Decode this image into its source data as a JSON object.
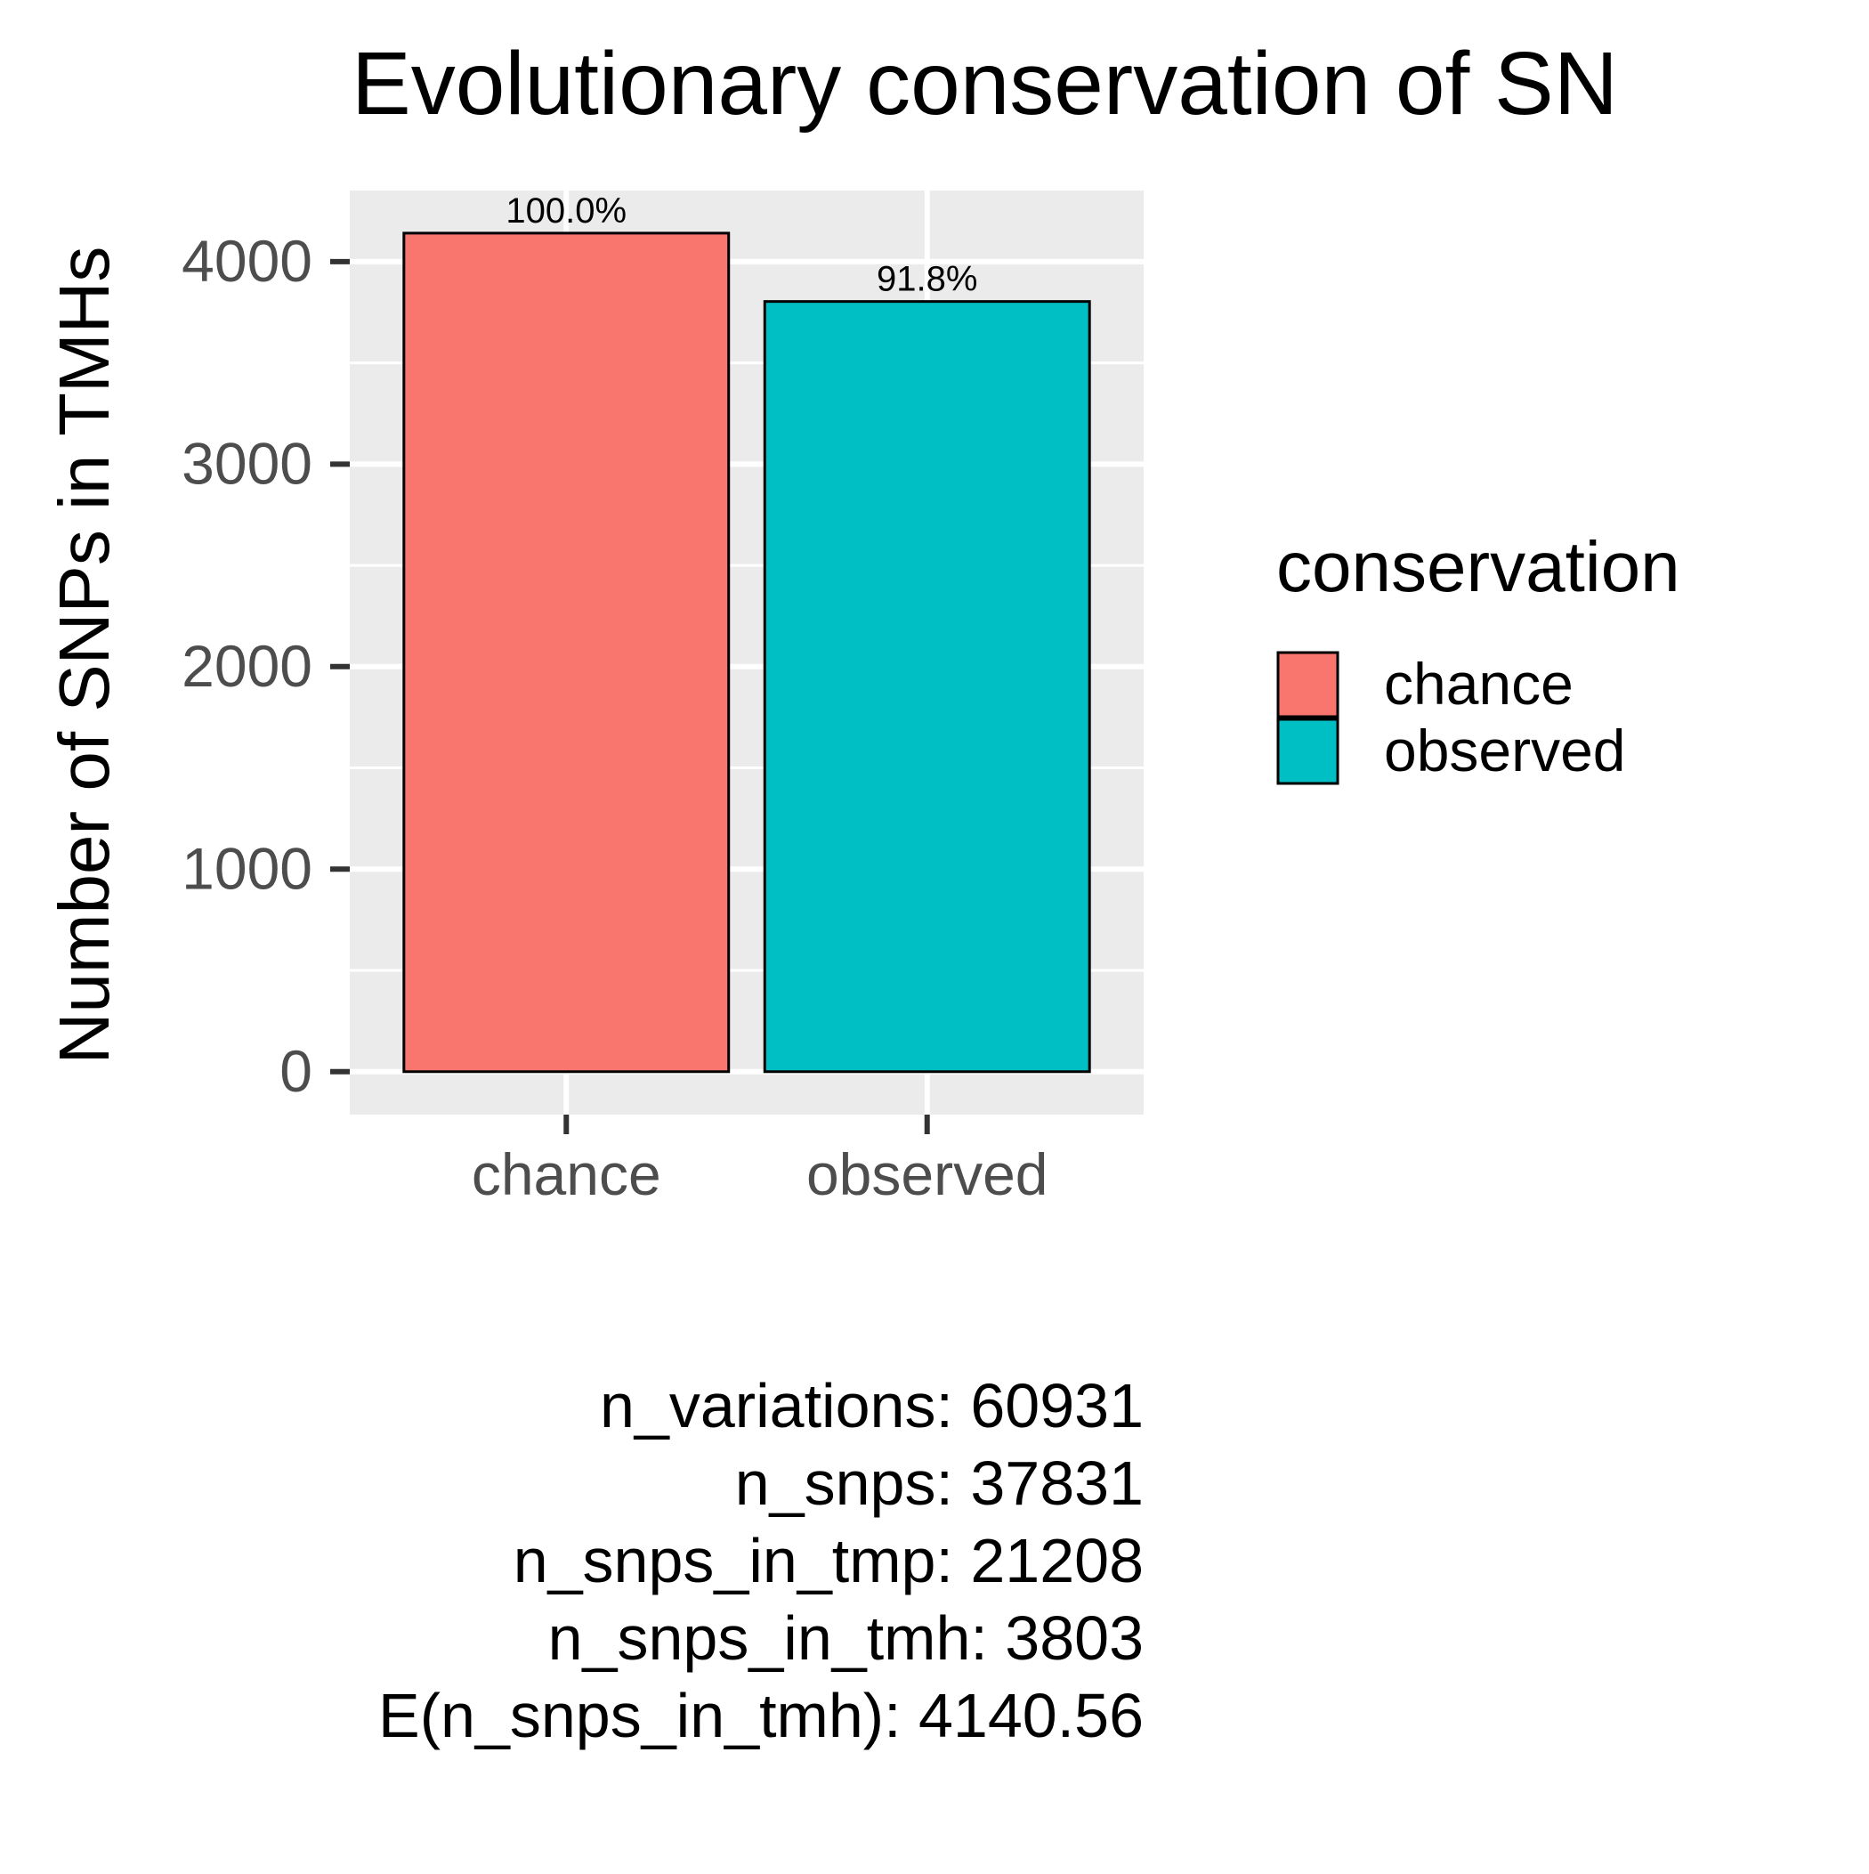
{
  "chart_data": {
    "type": "bar",
    "title": "Evolutionary conservation of SN",
    "ylabel": "Number of SNPs in TMHs",
    "xlabel": "",
    "categories": [
      "chance",
      "observed"
    ],
    "values": [
      4140.56,
      3803
    ],
    "bar_labels": [
      "100.0%",
      "91.8%"
    ],
    "colors": [
      "#F8766D",
      "#00BFC4"
    ],
    "ylim": [
      -212,
      4351
    ],
    "yticks": [
      0,
      1000,
      2000,
      3000,
      4000
    ],
    "ytick_labels": [
      "0",
      "1000",
      "2000",
      "3000",
      "4000"
    ],
    "grid": true,
    "legend": {
      "title": "conservation",
      "placement": "right",
      "entries": [
        {
          "label": "chance",
          "color": "#F8766D"
        },
        {
          "label": "observed",
          "color": "#00BFC4"
        }
      ]
    }
  },
  "caption_lines": [
    "n_variations: 60931",
    "n_snps: 37831",
    "n_snps_in_tmp: 21208",
    "n_snps_in_tmh: 3803",
    "E(n_snps_in_tmh): 4140.56"
  ]
}
